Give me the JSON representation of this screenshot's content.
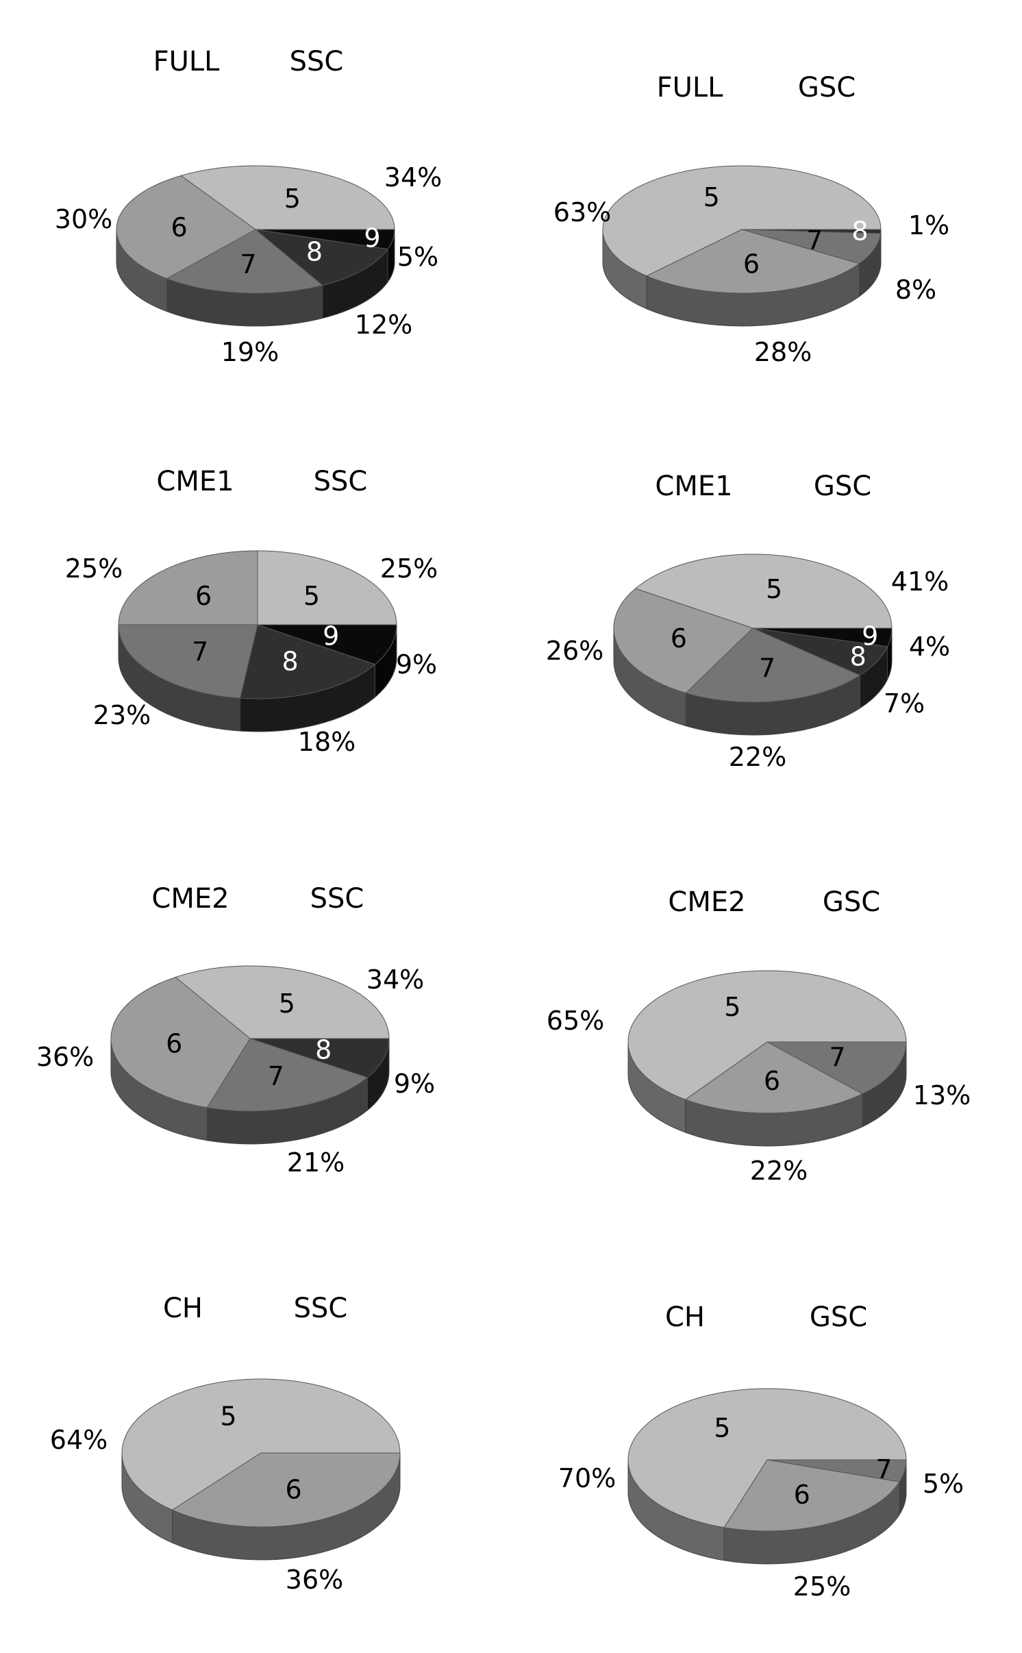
{
  "chart_data": [
    {
      "type": "pie",
      "title_left": "FULL",
      "title_right": "SSC",
      "categories": [
        "5",
        "9",
        "8",
        "7",
        "6"
      ],
      "values": [
        34,
        5,
        12,
        19,
        30
      ],
      "labels": [
        "34%",
        "5%",
        "12%",
        "19%",
        "30%"
      ]
    },
    {
      "type": "pie",
      "title_left": "FULL",
      "title_right": "GSC",
      "categories": [
        "5",
        "8",
        "7",
        "6"
      ],
      "values": [
        63,
        1,
        8,
        28
      ],
      "labels": [
        "63%",
        "1%",
        "8%",
        "28%"
      ]
    },
    {
      "type": "pie",
      "title_left": "CME1",
      "title_right": "SSC",
      "categories": [
        "5",
        "9",
        "8",
        "7",
        "6"
      ],
      "values": [
        25,
        9,
        18,
        23,
        25
      ],
      "labels": [
        "25%",
        "9%",
        "18%",
        "23%",
        "25%"
      ]
    },
    {
      "type": "pie",
      "title_left": "CME1",
      "title_right": "GSC",
      "categories": [
        "5",
        "9",
        "8",
        "7",
        "6"
      ],
      "values": [
        41,
        4,
        7,
        22,
        26
      ],
      "labels": [
        "41%",
        "4%",
        "7%",
        "22%",
        "26%"
      ]
    },
    {
      "type": "pie",
      "title_left": "CME2",
      "title_right": "SSC",
      "categories": [
        "5",
        "8",
        "7",
        "6"
      ],
      "values": [
        34,
        9,
        21,
        36
      ],
      "labels": [
        "34%",
        "9%",
        "21%",
        "36%"
      ]
    },
    {
      "type": "pie",
      "title_left": "CME2",
      "title_right": "GSC",
      "categories": [
        "5",
        "7",
        "6"
      ],
      "values": [
        65,
        13,
        22
      ],
      "labels": [
        "65%",
        "13%",
        "22%"
      ]
    },
    {
      "type": "pie",
      "title_left": "CH",
      "title_right": "SSC",
      "categories": [
        "5",
        "6"
      ],
      "values": [
        64,
        36
      ],
      "labels": [
        "64%",
        "36%"
      ]
    },
    {
      "type": "pie",
      "title_left": "CH",
      "title_right": "GSC",
      "categories": [
        "5",
        "7",
        "6"
      ],
      "values": [
        70,
        5,
        25
      ],
      "labels": [
        "70%",
        "5%",
        "25%"
      ]
    }
  ],
  "slice_colors": {
    "5": "#bcbcbc",
    "6": "#9c9c9c",
    "7": "#757575",
    "8": "#303030",
    "9": "#0a0a0a"
  }
}
